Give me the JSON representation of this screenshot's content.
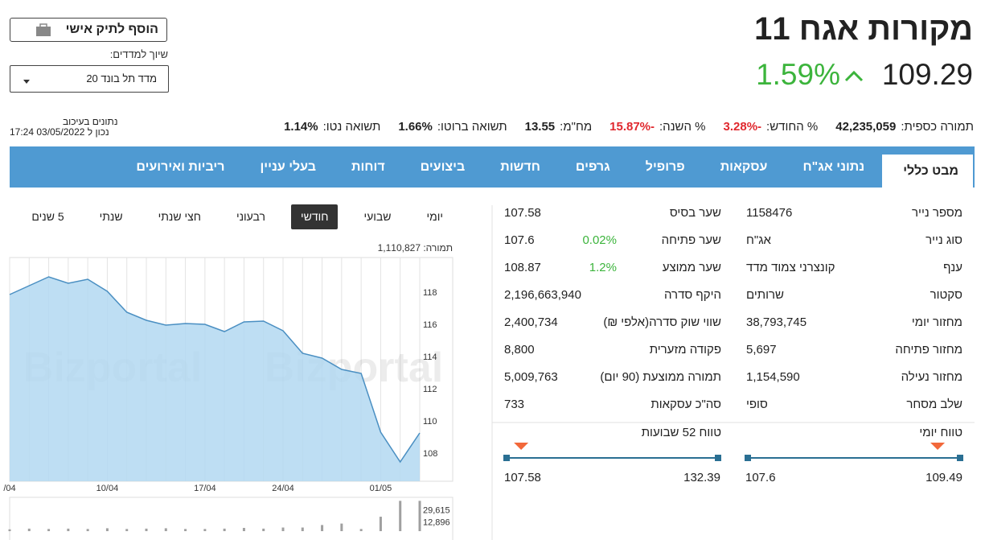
{
  "header": {
    "title": "מקורות אגח 11",
    "price": 109.29,
    "change": "1.59%",
    "change_color": "#3cb43c",
    "add_button": "הוסף לתיק אישי",
    "index_label": "שיוך למדדים:",
    "index_select": "מדד תל בונד 20",
    "delay_note": "נתונים בעיכוב",
    "as_of": "נכון ל 03/05/2022 17:24"
  },
  "stats": [
    {
      "label": "תמורה כספית:",
      "value": "42,235,059"
    },
    {
      "label": "% החודש:",
      "value": "-3.28%",
      "color": "#e0282e"
    },
    {
      "label": "% השנה:",
      "value": "-15.87%",
      "color": "#e0282e"
    },
    {
      "label": "מח\"מ:",
      "value": "13.55"
    },
    {
      "label": "תשואה ברוטו:",
      "value": "1.66%"
    },
    {
      "label": "תשואה נטו:",
      "value": "1.14%"
    }
  ],
  "tabs": [
    "מבט כללי",
    "נתוני אג\"ח",
    "עסקאות",
    "פרופיל",
    "גרפים",
    "חדשות",
    "ביצועים",
    "דוחות",
    "בעלי עניין",
    "ריביות ואירועים"
  ],
  "active_tab": 0,
  "info": {
    "right": [
      {
        "label": "מספר נייר",
        "value": "1158476"
      },
      {
        "label": "סוג נייר",
        "value": "אג\"ח"
      },
      {
        "label": "ענף",
        "value": "קונצרני צמוד מדד"
      },
      {
        "label": "סקטור",
        "value": "שרותים"
      },
      {
        "label": "מחזור יומי",
        "value": "38,793,745"
      },
      {
        "label": "מחזור פתיחה",
        "value": "5,697"
      },
      {
        "label": "מחזור נעילה",
        "value": "1,154,590"
      },
      {
        "label": "שלב מסחר",
        "value": "סופי"
      }
    ],
    "middle": [
      {
        "label": "שער בסיס",
        "value": "107.58"
      },
      {
        "label": "שער פתיחה",
        "value": "107.6",
        "change": "0.02%"
      },
      {
        "label": "שער ממוצע",
        "value": "108.87",
        "change": "1.2%"
      },
      {
        "label": "היקף סדרה",
        "value": "2,196,663,940"
      },
      {
        "label": "שווי שוק סדרה(אלפי ₪)",
        "value": "2,400,734"
      },
      {
        "label": "פקודה מזערית",
        "value": "8,800"
      },
      {
        "label": "תמורה ממוצעת (90 יום)",
        "value": "5,009,763"
      },
      {
        "label": "סה\"כ עסקאות",
        "value": "733"
      }
    ]
  },
  "ranges": [
    {
      "title": "טווח יומי",
      "low": 107.6,
      "high": 109.49
    },
    {
      "title": "טווח 52 שבועות",
      "low": 107.58,
      "high": 132.39
    }
  ],
  "chart_buttons": [
    "יומי",
    "שבועי",
    "חודשי",
    "רבעוני",
    "חצי שנתי",
    "שנתי",
    "5 שנים"
  ],
  "active_button": 2,
  "turnover_label": "תמורה: 1,110,827",
  "chart": {
    "type": "area",
    "color": "#b3d8f1",
    "line_color": "#4a8fc2",
    "grid": true,
    "watermark": "Bizportal",
    "categories": [
      "/04",
      null,
      null,
      null,
      null,
      "10/04",
      null,
      null,
      null,
      null,
      "17/04",
      null,
      null,
      null,
      "24/04",
      null,
      null,
      null,
      null,
      "01/05",
      null,
      null
    ],
    "values": [
      117.85,
      118.4,
      118.95,
      118.55,
      118.8,
      118.05,
      116.75,
      116.25,
      115.95,
      116.05,
      116.0,
      115.55,
      116.15,
      116.2,
      115.6,
      114.2,
      113.9,
      113.2,
      112.95,
      109.3,
      107.45,
      109.25
    ],
    "ylim": [
      106.25,
      120.15
    ],
    "yticks": [
      108,
      110,
      112,
      114,
      116,
      118
    ],
    "volume": {
      "color": "#a0a0a0",
      "values": [
        2500,
        3500,
        3000,
        3500,
        3000,
        4000,
        3000,
        3500,
        4000,
        3000,
        3000,
        3500,
        4500,
        3500,
        5000,
        5000,
        8500,
        10500,
        3000,
        20000,
        42000,
        42000
      ],
      "ylim": [
        0,
        44600
      ],
      "yticks": [
        {
          "value": 29615,
          "label": "29,615"
        },
        {
          "value": 12896,
          "label": "12,896"
        }
      ]
    }
  }
}
